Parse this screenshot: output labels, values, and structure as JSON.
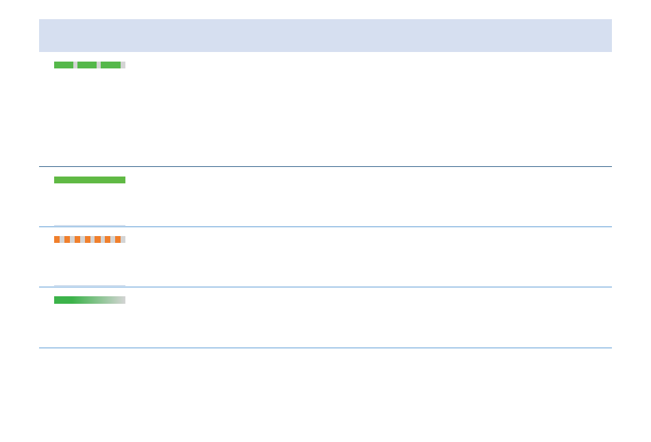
{
  "colors": {
    "header_bg": "#d6dff0",
    "track": "#d4d4d4",
    "green": "#55b84a",
    "solid_green": "#60b944",
    "orange": "#f07f2c",
    "gradient_start": "#3cb34a",
    "rule": "#5b9bd5"
  },
  "rows": [
    {
      "style": "segmented",
      "color": "#55b84a",
      "segments_total": 3,
      "segments_filled": 3,
      "progress": 0.93
    },
    {
      "style": "solid",
      "color": "#60b944",
      "progress": 1.0
    },
    {
      "style": "dashed-indeterminate",
      "color": "#f07f2c",
      "dashes": 7
    },
    {
      "style": "gradient",
      "color": "#3cb34a",
      "progress": 1.0
    }
  ]
}
